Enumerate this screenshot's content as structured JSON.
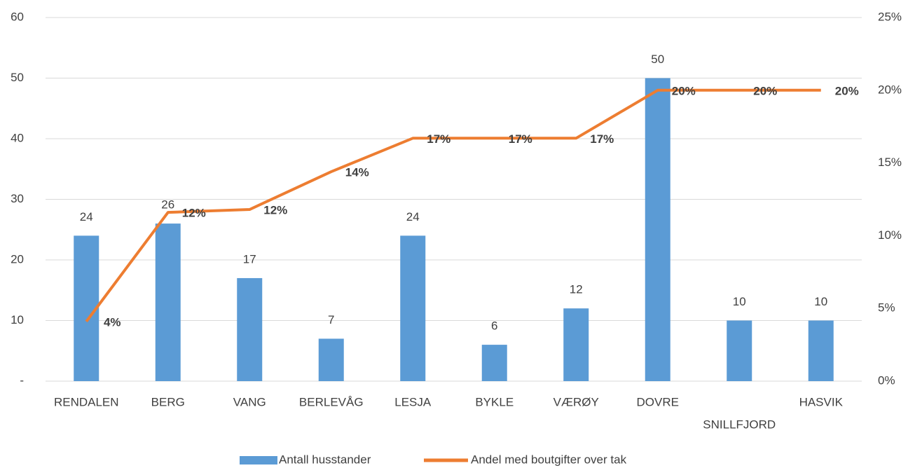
{
  "chart_data": {
    "type": "bar_line",
    "categories": [
      "RENDALEN",
      "BERG",
      "VANG",
      "BERLEVÅG",
      "LESJA",
      "BYKLE",
      "VÆRØY",
      "DOVRE",
      "SNILLFJORD",
      "HASVIK"
    ],
    "series": [
      {
        "name": "Antall husstander",
        "type": "bar",
        "color": "#5b9bd5",
        "values": [
          24,
          26,
          17,
          7,
          24,
          6,
          12,
          50,
          10,
          10
        ]
      },
      {
        "name": "Andel med boutgifter over tak",
        "type": "line",
        "axis": "y2",
        "color": "#ed7d31",
        "values": [
          4.1,
          11.6,
          11.8,
          14.4,
          16.7,
          16.7,
          16.7,
          20,
          20,
          20
        ],
        "value_labels": [
          "4%",
          "12%",
          "12%",
          "14%",
          "17%",
          "17%",
          "17%",
          "20%",
          "20%",
          "20%"
        ]
      }
    ],
    "ylim": [
      0,
      60
    ],
    "yticks": [
      {
        "value": 0,
        "label": "-"
      },
      10,
      20,
      30,
      40,
      50,
      60
    ],
    "y2lim": [
      0,
      25
    ],
    "y2ticks": [
      {
        "value": 0,
        "label": "0%"
      },
      {
        "value": 5,
        "label": "5%"
      },
      {
        "value": 10,
        "label": "10%"
      },
      {
        "value": 15,
        "label": "15%"
      },
      {
        "value": 20,
        "label": "20%"
      },
      {
        "value": 25,
        "label": "25%"
      }
    ],
    "grid": true,
    "legend": "bottom"
  }
}
